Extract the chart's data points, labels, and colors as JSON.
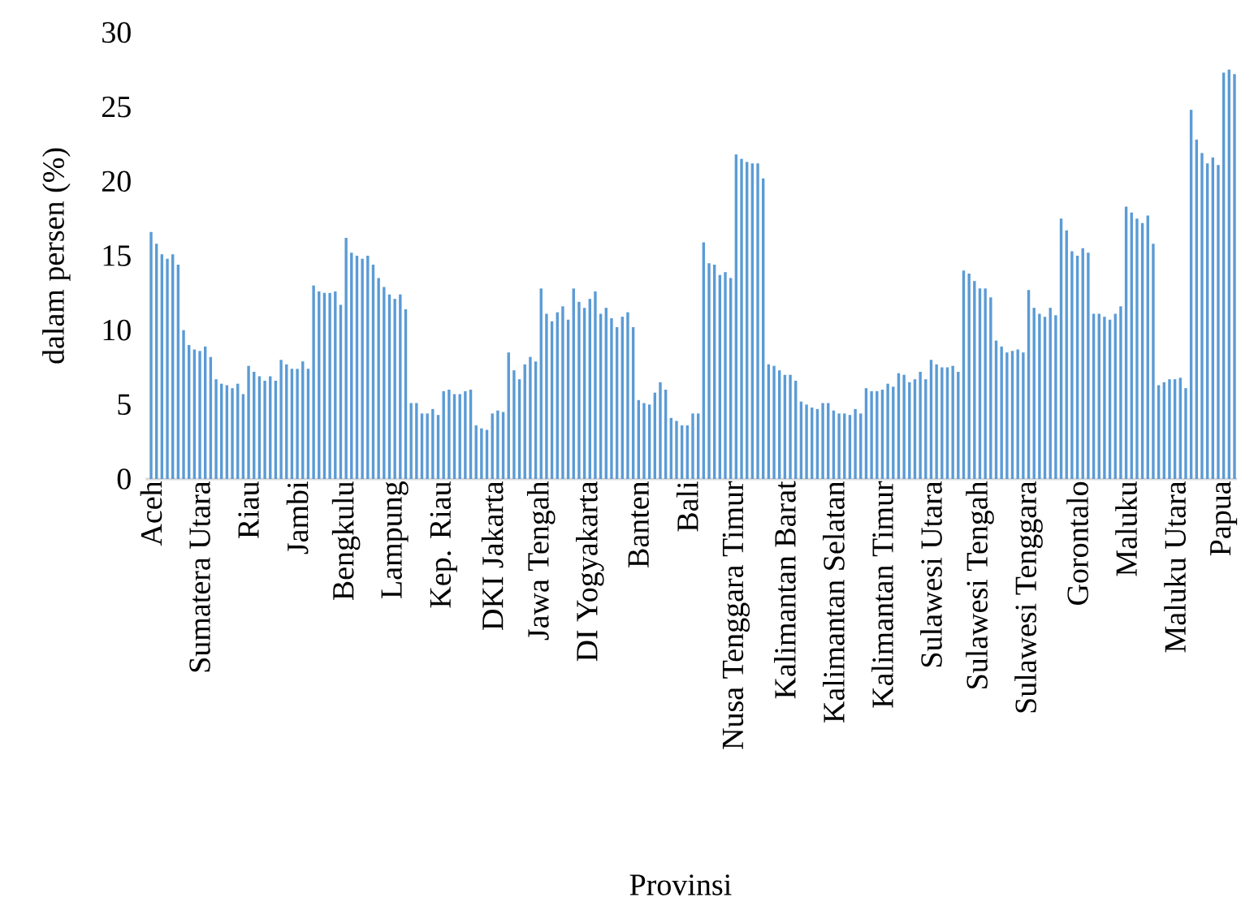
{
  "chart_data": {
    "type": "bar",
    "xlabel": "Provinsi",
    "ylabel": "dalam persen (%)",
    "color": "#5b9bd5",
    "ylim": [
      0,
      30
    ],
    "yticks": [
      0,
      5,
      10,
      15,
      20,
      25,
      30
    ],
    "categories": [
      "Aceh",
      null,
      null,
      null,
      null,
      null,
      null,
      null,
      null,
      "Sumatera Utara",
      null,
      null,
      null,
      null,
      null,
      null,
      null,
      null,
      "Riau",
      null,
      null,
      null,
      null,
      null,
      null,
      null,
      null,
      "Jambi",
      null,
      null,
      null,
      null,
      null,
      null,
      null,
      null,
      "Bengkulu",
      null,
      null,
      null,
      null,
      null,
      null,
      null,
      null,
      "Lampung",
      null,
      null,
      null,
      null,
      null,
      null,
      null,
      null,
      "Kep. Riau",
      null,
      null,
      null,
      null,
      null,
      null,
      null,
      null,
      "DKI Jakarta",
      null,
      null,
      null,
      null,
      null,
      null,
      null,
      null,
      "Jawa Tengah",
      null,
      null,
      null,
      null,
      null,
      null,
      null,
      null,
      "DI Yogyakarta",
      null,
      null,
      null,
      null,
      null,
      null,
      null,
      null,
      "Banten",
      null,
      null,
      null,
      null,
      null,
      null,
      null,
      null,
      "Bali",
      null,
      null,
      null,
      null,
      null,
      null,
      null,
      null,
      "Nusa Tenggara Timur",
      null,
      null,
      null,
      null,
      null,
      null,
      null,
      null,
      "Kalimantan Barat",
      null,
      null,
      null,
      null,
      null,
      null,
      null,
      null,
      "Kalimantan Selatan",
      null,
      null,
      null,
      null,
      null,
      null,
      null,
      null,
      "Kalimantan Timur",
      null,
      null,
      null,
      null,
      null,
      null,
      null,
      null,
      "Sulawesi Utara",
      null,
      null,
      null,
      null,
      null,
      null,
      null,
      null,
      "Sulawesi Tengah",
      null,
      null,
      null,
      null,
      null,
      null,
      null,
      null,
      "Sulawesi Tenggara",
      null,
      null,
      null,
      null,
      null,
      null,
      null,
      null,
      "Gorontalo",
      null,
      null,
      null,
      null,
      null,
      null,
      null,
      null,
      "Maluku",
      null,
      null,
      null,
      null,
      null,
      null,
      null,
      null,
      "Maluku Utara",
      null,
      null,
      null,
      null,
      null,
      null,
      null,
      null,
      "Papua",
      null,
      null
    ],
    "values": [
      16.6,
      15.8,
      15.1,
      14.8,
      15.1,
      14.4,
      10.0,
      9.0,
      8.7,
      8.6,
      8.9,
      8.2,
      6.7,
      6.4,
      6.3,
      6.1,
      6.4,
      5.7,
      7.6,
      7.2,
      6.9,
      6.6,
      6.9,
      6.6,
      8.0,
      7.7,
      7.4,
      7.4,
      7.9,
      7.4,
      13.0,
      12.6,
      12.5,
      12.5,
      12.6,
      11.7,
      16.2,
      15.2,
      15.0,
      14.8,
      15.0,
      14.4,
      13.5,
      12.9,
      12.4,
      12.1,
      12.4,
      11.4,
      5.1,
      5.1,
      4.4,
      4.4,
      4.7,
      4.3,
      5.9,
      6.0,
      5.7,
      5.7,
      5.9,
      6.0,
      3.6,
      3.4,
      3.3,
      4.4,
      4.6,
      4.5,
      8.5,
      7.3,
      6.7,
      7.7,
      8.2,
      7.9,
      12.8,
      11.1,
      10.6,
      11.2,
      11.6,
      10.7,
      12.8,
      11.9,
      11.5,
      12.1,
      12.6,
      11.1,
      11.5,
      10.8,
      10.2,
      10.9,
      11.2,
      10.2,
      5.3,
      5.1,
      5.0,
      5.8,
      6.5,
      6.0,
      4.1,
      3.9,
      3.6,
      3.6,
      4.4,
      4.4,
      15.9,
      14.5,
      14.4,
      13.7,
      13.9,
      13.5,
      21.8,
      21.5,
      21.3,
      21.2,
      21.2,
      20.2,
      7.7,
      7.6,
      7.3,
      7.0,
      7.0,
      6.6,
      5.2,
      5.0,
      4.8,
      4.7,
      5.1,
      5.1,
      4.6,
      4.4,
      4.4,
      4.3,
      4.7,
      4.4,
      6.1,
      5.9,
      5.9,
      6.0,
      6.4,
      6.2,
      7.1,
      7.0,
      6.5,
      6.7,
      7.2,
      6.7,
      8.0,
      7.7,
      7.5,
      7.5,
      7.6,
      7.2,
      14.0,
      13.8,
      13.3,
      12.8,
      12.8,
      12.2,
      9.3,
      8.9,
      8.5,
      8.6,
      8.7,
      8.5,
      12.7,
      11.5,
      11.1,
      10.9,
      11.5,
      11.0,
      17.5,
      16.7,
      15.3,
      15.0,
      15.5,
      15.2,
      11.1,
      11.1,
      10.9,
      10.7,
      11.1,
      11.6,
      18.3,
      17.9,
      17.5,
      17.2,
      17.7,
      15.8,
      6.3,
      6.5,
      6.7,
      6.7,
      6.8,
      6.1,
      24.8,
      22.8,
      21.9,
      21.2,
      21.6,
      21.1,
      27.3,
      27.5,
      27.2
    ]
  }
}
